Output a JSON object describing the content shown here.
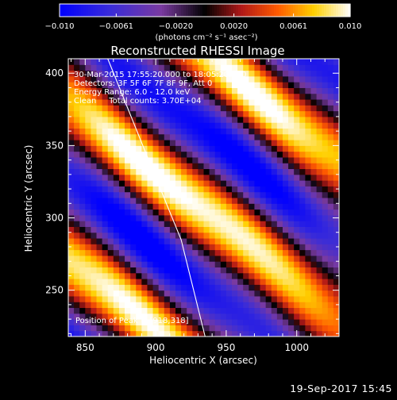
{
  "chart_data": {
    "type": "heatmap",
    "title": "Reconstructed RHESSI Image",
    "xlabel": "Heliocentric X (arcsec)",
    "ylabel": "Heliocentric Y (arcsec)",
    "xlim": [
      838,
      1030
    ],
    "ylim": [
      218,
      410
    ],
    "x_ticks": [
      850,
      900,
      950,
      1000
    ],
    "y_ticks": [
      250,
      300,
      350,
      400
    ],
    "colorscale": {
      "name": "IDL color table 5 (blue-purple-red-yellow-white)",
      "range": [
        -0.01,
        0.01
      ],
      "tick_labels": [
        "-0.010",
        "-0.0061",
        "-0.0020",
        "0.0020",
        "0.0061",
        "0.010"
      ],
      "unit_label": "(photons cm⁻² s⁻¹ asec⁻²)",
      "stops": [
        {
          "v": -0.01,
          "color": "#0000ff"
        },
        {
          "v": -0.0065,
          "color": "#3a2cd8"
        },
        {
          "v": -0.003,
          "color": "#7a3aa0"
        },
        {
          "v": 0.0,
          "color": "#000000"
        },
        {
          "v": 0.0025,
          "color": "#b01818"
        },
        {
          "v": 0.005,
          "color": "#ff5a00"
        },
        {
          "v": 0.0075,
          "color": "#ffd000"
        },
        {
          "v": 0.01,
          "color": "#ffffff"
        }
      ]
    },
    "image_model": {
      "description_only_for_script": "fringe pattern with diagonal stripes",
      "fringe_direction_deg": 52,
      "fringe_period_arcsec": 86,
      "peak_position": [
        918,
        318
      ],
      "pixel_size_arcsec": 4
    },
    "limb_curve": [
      [
        866,
        410
      ],
      [
        895,
        340
      ],
      [
        918,
        285
      ],
      [
        935,
        218
      ]
    ],
    "annotations": {
      "time_range": "30-Mar-2015 17:55:20.000 to 18:05:20.000",
      "detectors": "Detectors: 3F 5F 6F 7F 8F 9F, Att 0",
      "energy_range": "Energy Range: 6.0 - 12.0 keV",
      "algorithm": "Clean     Total counts: 3.70E+04",
      "peak": "Position of Peak = [918,318]"
    }
  },
  "footer": {
    "timestamp": "19-Sep-2017 15:45"
  }
}
